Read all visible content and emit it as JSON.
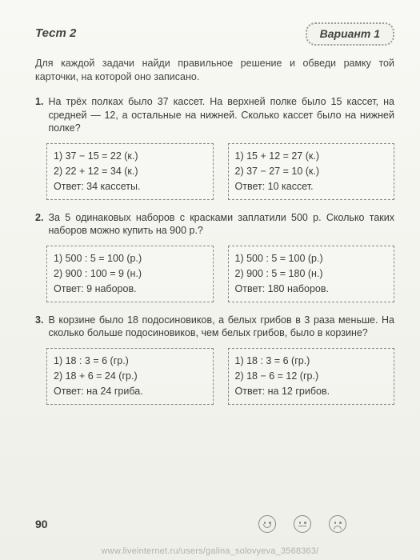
{
  "colors": {
    "page_bg": "#f5f5f1",
    "text": "#3a3a38",
    "border_dashed": "#888888",
    "watermark": "#b0b0ac"
  },
  "typography": {
    "body_fontsize_pt": 10,
    "header_fontsize_pt": 11,
    "font_family": "Arial"
  },
  "header": {
    "test": "Тест 2",
    "variant": "Вариант 1"
  },
  "instruction": "Для каждой задачи найди правильное решение и обведи рамку той карточки, на которой оно записано.",
  "problems": [
    {
      "num": "1.",
      "text": "На трёх полках было 37 кассет. На верхней полке было 15 кассет, на средней — 12, а остальные на нижней. Сколько кассет было на нижней полке?",
      "cards": [
        {
          "lines": [
            "1)  37 − 15 = 22  (к.)",
            "2)  22 + 12 = 34  (к.)",
            "Ответ:  34 кассеты."
          ]
        },
        {
          "lines": [
            "1)  15 + 12 = 27  (к.)",
            "2)  37 − 27 = 10  (к.)",
            "Ответ:  10 кассет."
          ]
        }
      ]
    },
    {
      "num": "2.",
      "text": "За 5 одинаковых наборов с красками заплатили 500 р. Сколько таких наборов можно купить на 900 р.?",
      "cards": [
        {
          "lines": [
            "1)  500 : 5 = 100  (р.)",
            "2)  900 : 100 = 9  (н.)",
            "Ответ:  9 наборов."
          ]
        },
        {
          "lines": [
            "1)  500 : 5 = 100  (р.)",
            "2)  900 : 5 = 180  (н.)",
            "Ответ:  180 наборов."
          ]
        }
      ]
    },
    {
      "num": "3.",
      "text": "В корзине было 18 подосиновиков, а белых грибов в 3 раза меньше. На сколько больше подосиновиков, чем белых грибов, было в корзине?",
      "cards": [
        {
          "lines": [
            "1)  18 : 3 = 6  (гр.)",
            "2)  18 + 6 = 24  (гр.)",
            "Ответ:  на 24 гриба."
          ]
        },
        {
          "lines": [
            "1)  18 : 3 = 6  (гр.)",
            "2)  18 − 6 = 12  (гр.)",
            "Ответ:  на 12 грибов."
          ]
        }
      ]
    }
  ],
  "page_number": "90",
  "watermark": "www.liveinternet.ru/users/galina_solovyeva_3568363/"
}
